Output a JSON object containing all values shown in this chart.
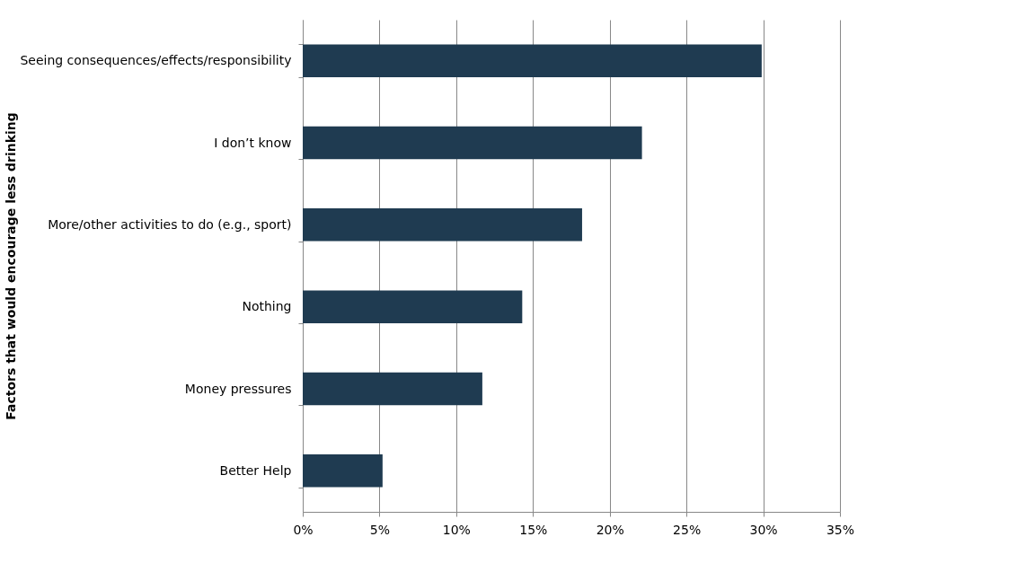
{
  "chart_data": {
    "type": "bar",
    "orientation": "horizontal",
    "ylabel": "Factors that would encourage less drinking",
    "categories": [
      "Seeing consequences/effects/responsibility",
      "I don’t know",
      "More/other activities to do (e.g., sport)",
      "Nothing",
      "Money pressures",
      "Better Help"
    ],
    "values": [
      29.9,
      22.1,
      18.2,
      14.3,
      11.7,
      5.2
    ],
    "color": "#1f3b51",
    "xlim": [
      0,
      35
    ],
    "xticks": [
      {
        "value": 0,
        "label": "0%"
      },
      {
        "value": 5,
        "label": "5%"
      },
      {
        "value": 10,
        "label": "10%"
      },
      {
        "value": 15,
        "label": "15%"
      },
      {
        "value": 20,
        "label": "20%"
      },
      {
        "value": 25,
        "label": "25%"
      },
      {
        "value": 30,
        "label": "30%"
      },
      {
        "value": 35,
        "label": "35%"
      }
    ],
    "grid": "x"
  }
}
